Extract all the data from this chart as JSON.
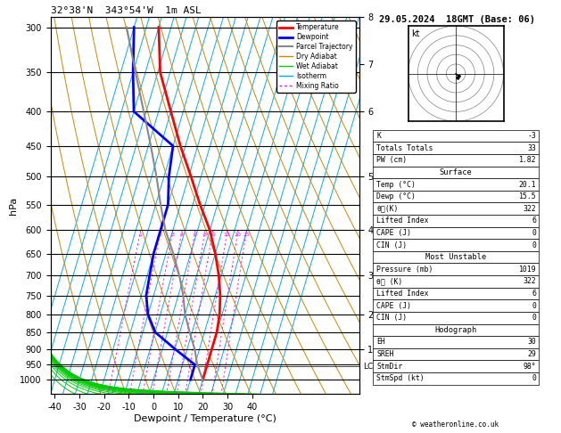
{
  "title_left": "32°38'N  343°54'W  1m ASL",
  "title_right": "29.05.2024  18GMT (Base: 06)",
  "xlabel": "Dewpoint / Temperature (°C)",
  "ylabel_left": "hPa",
  "legend_labels": [
    "Temperature",
    "Dewpoint",
    "Parcel Trajectory",
    "Dry Adiabat",
    "Wet Adiabat",
    "Isotherm",
    "Mixing Ratio"
  ],
  "legend_colors": [
    "#ff0000",
    "#0000ff",
    "#888888",
    "#cc8800",
    "#00cc00",
    "#00aaff",
    "#ff00ff"
  ],
  "legend_styles": [
    "solid",
    "solid",
    "solid",
    "solid",
    "solid",
    "solid",
    "dotted"
  ],
  "legend_widths": [
    2,
    2,
    1.5,
    1,
    1,
    1,
    1
  ],
  "temperature_profile": {
    "pressure": [
      1000,
      975,
      950,
      900,
      850,
      800,
      750,
      700,
      650,
      600,
      550,
      500,
      450,
      400,
      350,
      300
    ],
    "temp": [
      20,
      20,
      20,
      20,
      20,
      19,
      17,
      14,
      10,
      5,
      -2,
      -9,
      -17,
      -25,
      -34,
      -40
    ]
  },
  "dewpoint_profile": {
    "pressure": [
      1000,
      975,
      950,
      900,
      850,
      800,
      750,
      700,
      650,
      600,
      550,
      500,
      450,
      400,
      350,
      300
    ],
    "dewp": [
      15,
      15,
      15,
      5,
      -5,
      -10,
      -13,
      -14,
      -15,
      -15,
      -15,
      -18,
      -20,
      -40,
      -45,
      -50
    ]
  },
  "parcel_profile": {
    "pressure": [
      1000,
      975,
      950,
      900,
      850,
      800,
      750,
      700,
      650,
      600,
      550,
      500,
      450,
      400,
      350,
      300
    ],
    "temp": [
      20,
      18,
      16,
      13,
      9,
      5,
      2,
      -2,
      -7,
      -13,
      -18,
      -23,
      -29,
      -36,
      -44,
      -53
    ]
  },
  "stats": {
    "K": "-3",
    "Totals Totals": "33",
    "PW (cm)": "1.82",
    "surf_temp": "20.1",
    "surf_dewp": "15.5",
    "surf_theta": "322",
    "surf_li": "6",
    "surf_cape": "0",
    "surf_cin": "0",
    "mu_pres": "1019",
    "mu_theta": "322",
    "mu_li": "6",
    "mu_cape": "0",
    "mu_cin": "0",
    "hodo_eh": "30",
    "hodo_sreh": "29",
    "hodo_stmdir": "98°",
    "hodo_stmspd": "0"
  },
  "lcl_pressure": 955,
  "mixing_ratios": [
    1,
    2,
    3,
    4,
    6,
    8,
    10,
    15,
    20,
    25
  ],
  "km_ticks": [
    1,
    2,
    3,
    4,
    5,
    6,
    7,
    8
  ],
  "km_pressures": [
    900,
    800,
    700,
    600,
    500,
    400,
    340,
    290
  ],
  "pressure_levels": [
    300,
    350,
    400,
    450,
    500,
    550,
    600,
    650,
    700,
    750,
    800,
    850,
    900,
    950,
    1000
  ],
  "skew_factor": 35.0,
  "p_min": 290,
  "p_max": 1050,
  "T_min": -40,
  "T_max": 40
}
